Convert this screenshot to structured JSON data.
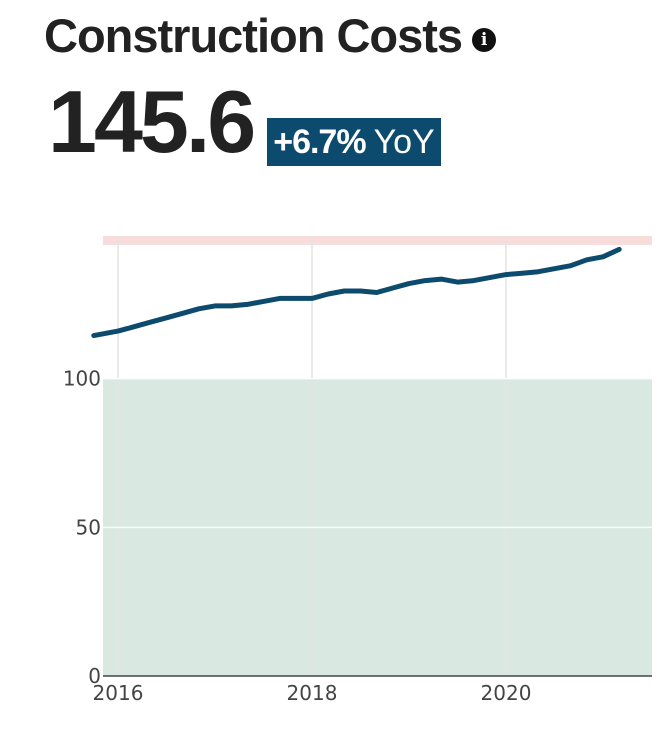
{
  "header": {
    "title": "Construction Costs",
    "info_icon": "info-icon",
    "value": "145.6",
    "change": "+6.7%",
    "change_label": "YoY",
    "badge_color": "#0d4b6e"
  },
  "chart_data": {
    "type": "line",
    "title": "",
    "xlabel": "",
    "ylabel": "",
    "x_ticks": [
      "2016",
      "2018",
      "2020"
    ],
    "y_ticks": [
      "0",
      "50",
      "100"
    ],
    "ylim": [
      0,
      148
    ],
    "grid": true,
    "colors": {
      "line": "#0d4b6e",
      "lower_band": "#d9e9e1",
      "upper_band": "#f7dcdc",
      "grid": "#e6e6e6"
    },
    "bands": [
      {
        "from": 0,
        "to": 100,
        "color": "#d9e9e1"
      },
      {
        "from": 145,
        "to": 148,
        "color": "#f7dcdc"
      }
    ],
    "series": [
      {
        "x": [
          "2015-10",
          "2015-12",
          "2016-01",
          "2016-03",
          "2016-05",
          "2016-07",
          "2016-09",
          "2016-11",
          "2017-01",
          "2017-03",
          "2017-05",
          "2017-07",
          "2017-09",
          "2017-11",
          "2018-01",
          "2018-03",
          "2018-05",
          "2018-07",
          "2018-09",
          "2018-11",
          "2019-01",
          "2019-03",
          "2019-05",
          "2019-07",
          "2019-09",
          "2019-11",
          "2020-01",
          "2020-03",
          "2020-05",
          "2020-07",
          "2020-09",
          "2020-11",
          "2021-01",
          "2021-03"
        ],
        "y": [
          114.5,
          115.5,
          116,
          117.5,
          119,
          120.5,
          122,
          123.5,
          124.5,
          124.5,
          125,
          126,
          127,
          127,
          127,
          128.5,
          129.5,
          129.5,
          129,
          130.5,
          132,
          133,
          133.5,
          132.5,
          133,
          134,
          135,
          135.5,
          136,
          137,
          138,
          140,
          141,
          143.5
        ]
      }
    ]
  }
}
